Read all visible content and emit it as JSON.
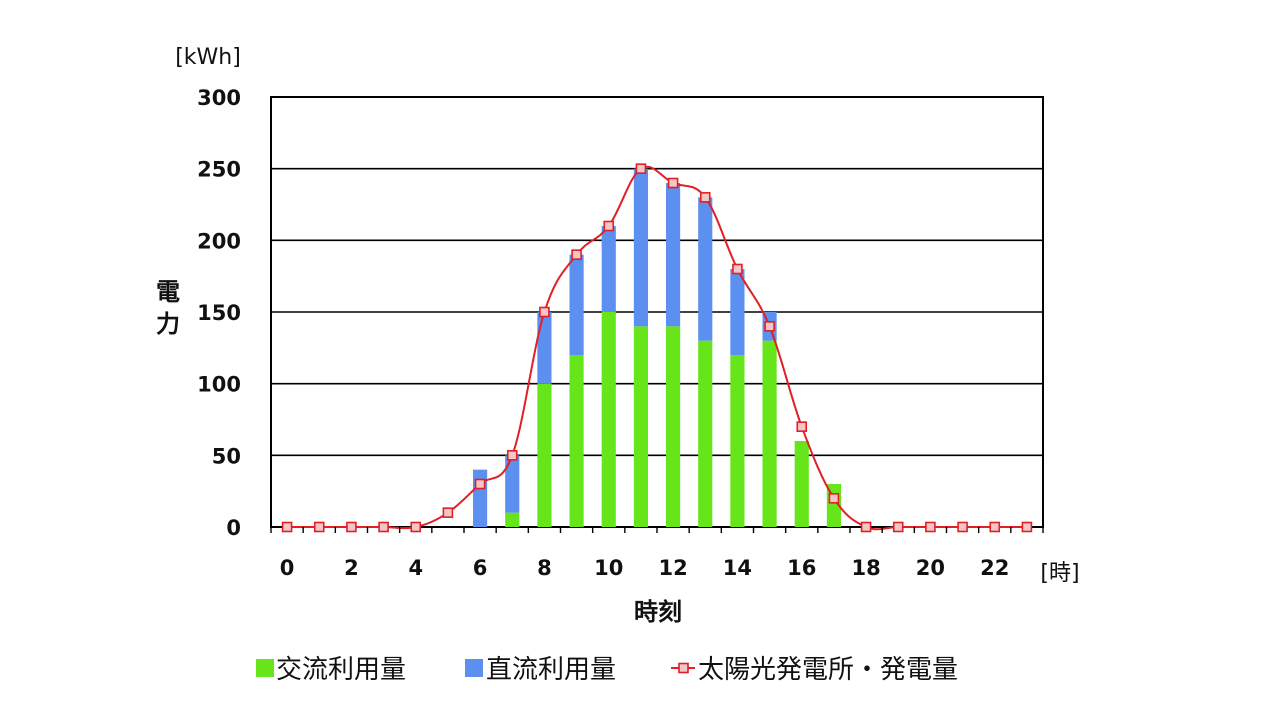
{
  "chart_data": {
    "type": "bar",
    "stacked": true,
    "y_unit": "[kWh]",
    "x_unit": "[時]",
    "ylabel": "電力",
    "xlabel": "時刻",
    "ylim": [
      0,
      300
    ],
    "y_ticks": [
      0,
      50,
      100,
      150,
      200,
      250,
      300
    ],
    "x_tick_labels": [
      "0",
      "2",
      "4",
      "6",
      "8",
      "10",
      "12",
      "14",
      "16",
      "18",
      "20",
      "22"
    ],
    "x_tick_hours": [
      0,
      2,
      4,
      6,
      8,
      10,
      12,
      14,
      16,
      18,
      20,
      22
    ],
    "grid": true,
    "legend_position": "bottom",
    "x": [
      0,
      1,
      2,
      3,
      4,
      5,
      6,
      7,
      8,
      9,
      10,
      11,
      12,
      13,
      14,
      15,
      16,
      17,
      18,
      19,
      20,
      21,
      22,
      23
    ],
    "series": [
      {
        "name": "交流利用量",
        "kind": "bar",
        "color": "#66e61a",
        "values": [
          0,
          0,
          0,
          0,
          0,
          0,
          0,
          10,
          100,
          120,
          150,
          140,
          140,
          130,
          120,
          130,
          60,
          30,
          0,
          0,
          0,
          0,
          0,
          0
        ]
      },
      {
        "name": "直流利用量",
        "kind": "bar",
        "color": "#5b8ff0",
        "values": [
          0,
          0,
          0,
          0,
          0,
          0,
          40,
          40,
          50,
          70,
          60,
          110,
          100,
          100,
          60,
          20,
          0,
          0,
          0,
          0,
          0,
          0,
          0,
          0
        ]
      },
      {
        "name": "太陽光発電所・発電量",
        "kind": "line",
        "color": "#e01f26",
        "values": [
          0,
          0,
          0,
          0,
          0,
          10,
          30,
          50,
          150,
          190,
          210,
          250,
          240,
          230,
          180,
          140,
          70,
          20,
          0,
          0,
          0,
          0,
          0,
          0
        ]
      }
    ]
  }
}
